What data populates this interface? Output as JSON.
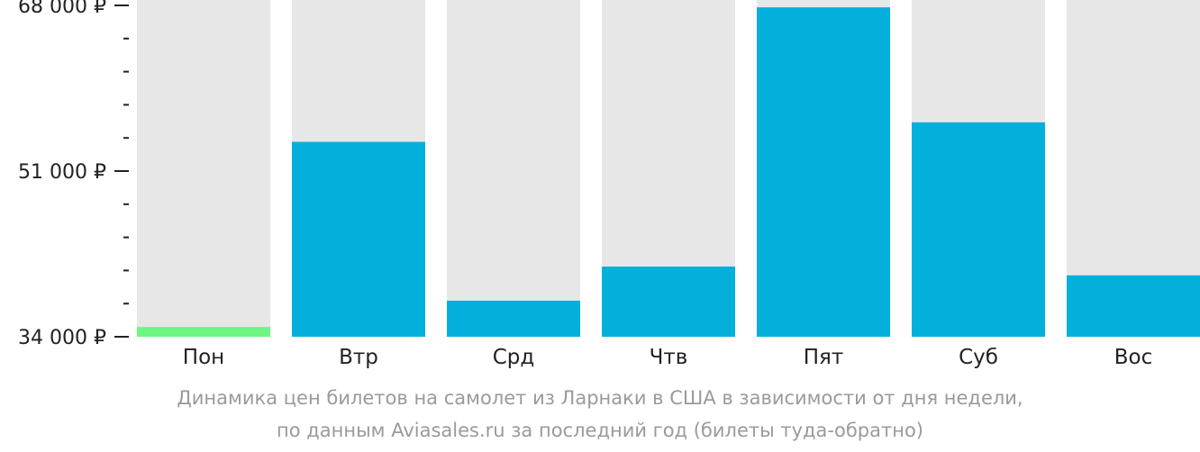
{
  "chart_data": {
    "type": "bar",
    "categories": [
      "Пон",
      "Втр",
      "Срд",
      "Чтв",
      "Пят",
      "Суб",
      "Вос"
    ],
    "values": [
      35000,
      54000,
      37700,
      41200,
      67800,
      56000,
      40300
    ],
    "ylim": [
      34000,
      68000
    ],
    "y_ticks": [
      34000,
      51000,
      68000
    ],
    "y_tick_labels": [
      "34 000 ₽",
      "51 000 ₽",
      "68 000 ₽"
    ],
    "minor_ticks_between": 4,
    "highlight_index": 0,
    "colors": {
      "bar": "#03b0dc",
      "highlight": "#6ef582",
      "track": "#e7e7e7",
      "axis": "#222222",
      "caption": "#9a9a9a"
    }
  },
  "caption": {
    "line1": "Динамика цен билетов на самолет из Ларнаки в США в зависимости от дня недели,",
    "line2": "по данным Aviasales.ru за последний год (билеты туда-обратно)"
  }
}
